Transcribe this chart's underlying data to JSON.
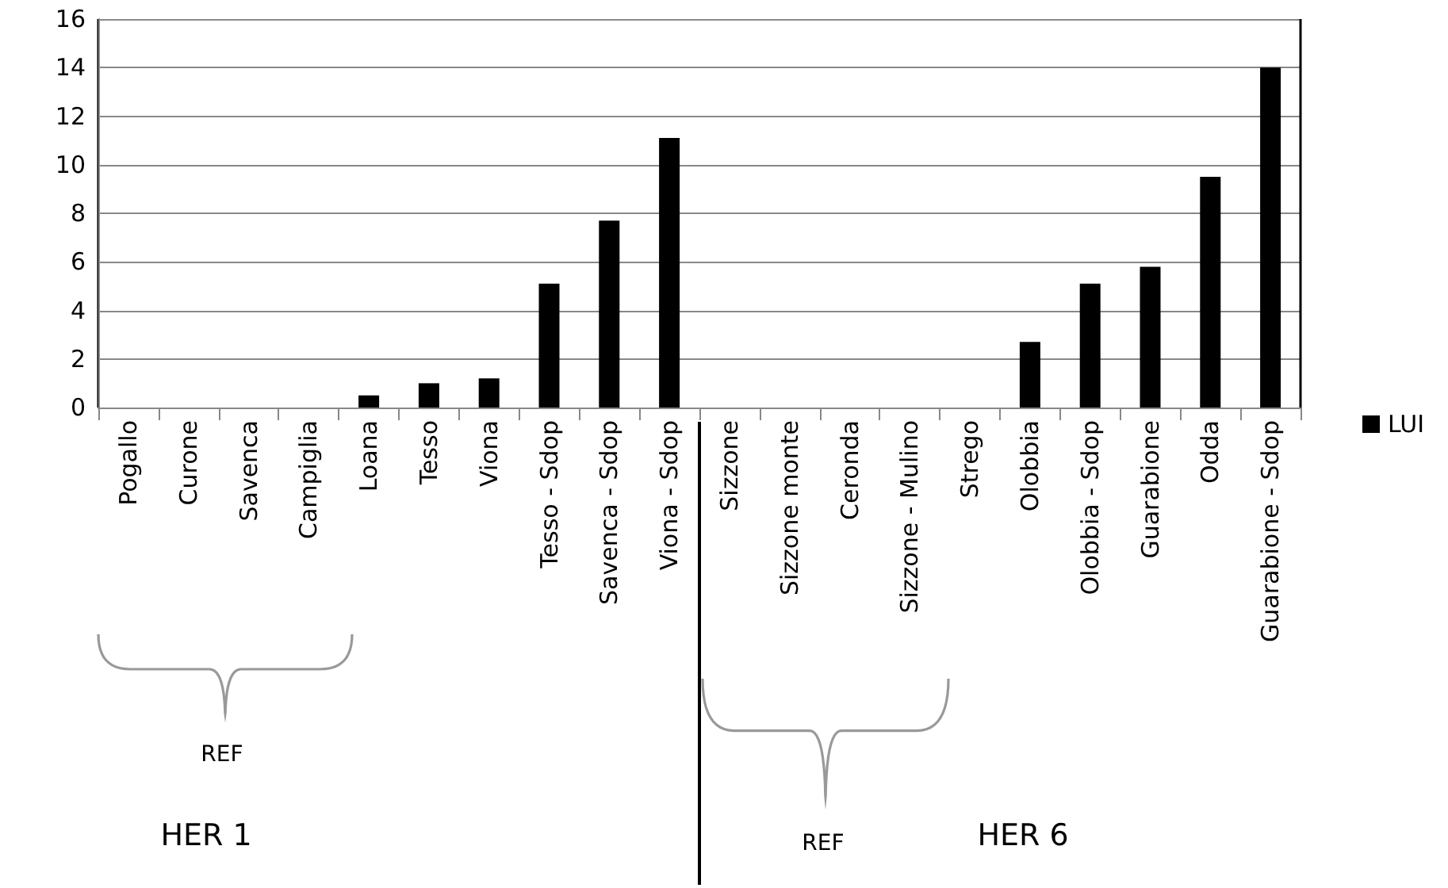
{
  "chart_data": {
    "type": "bar",
    "categories": [
      "Pogallo",
      "Curone",
      "Savenca",
      "Campiglia",
      "Loana",
      "Tesso",
      "Viona",
      "Tesso - Sdop",
      "Savenca - Sdop",
      "Viona - Sdop",
      "Sizzone",
      "Sizzone monte",
      "Ceronda",
      "Sizzone - Mulino",
      "Strego",
      "Olobbia",
      "Olobbia - Sdop",
      "Guarabione",
      "Odda",
      "Guarabione - Sdop"
    ],
    "series": [
      {
        "name": "LUI",
        "color": "#000000",
        "values": [
          0,
          0,
          0,
          0,
          0.5,
          1.0,
          1.2,
          5.1,
          7.7,
          11.1,
          0,
          0,
          0,
          0,
          0,
          2.7,
          5.1,
          5.8,
          9.5,
          14.0
        ]
      }
    ],
    "ylim": [
      0,
      16
    ],
    "yticks": [
      0,
      2,
      4,
      6,
      8,
      10,
      12,
      14,
      16
    ],
    "grid": "y",
    "legend": "right",
    "annotations": [
      "REF",
      "HER 1",
      "REF",
      "HER 6"
    ]
  }
}
